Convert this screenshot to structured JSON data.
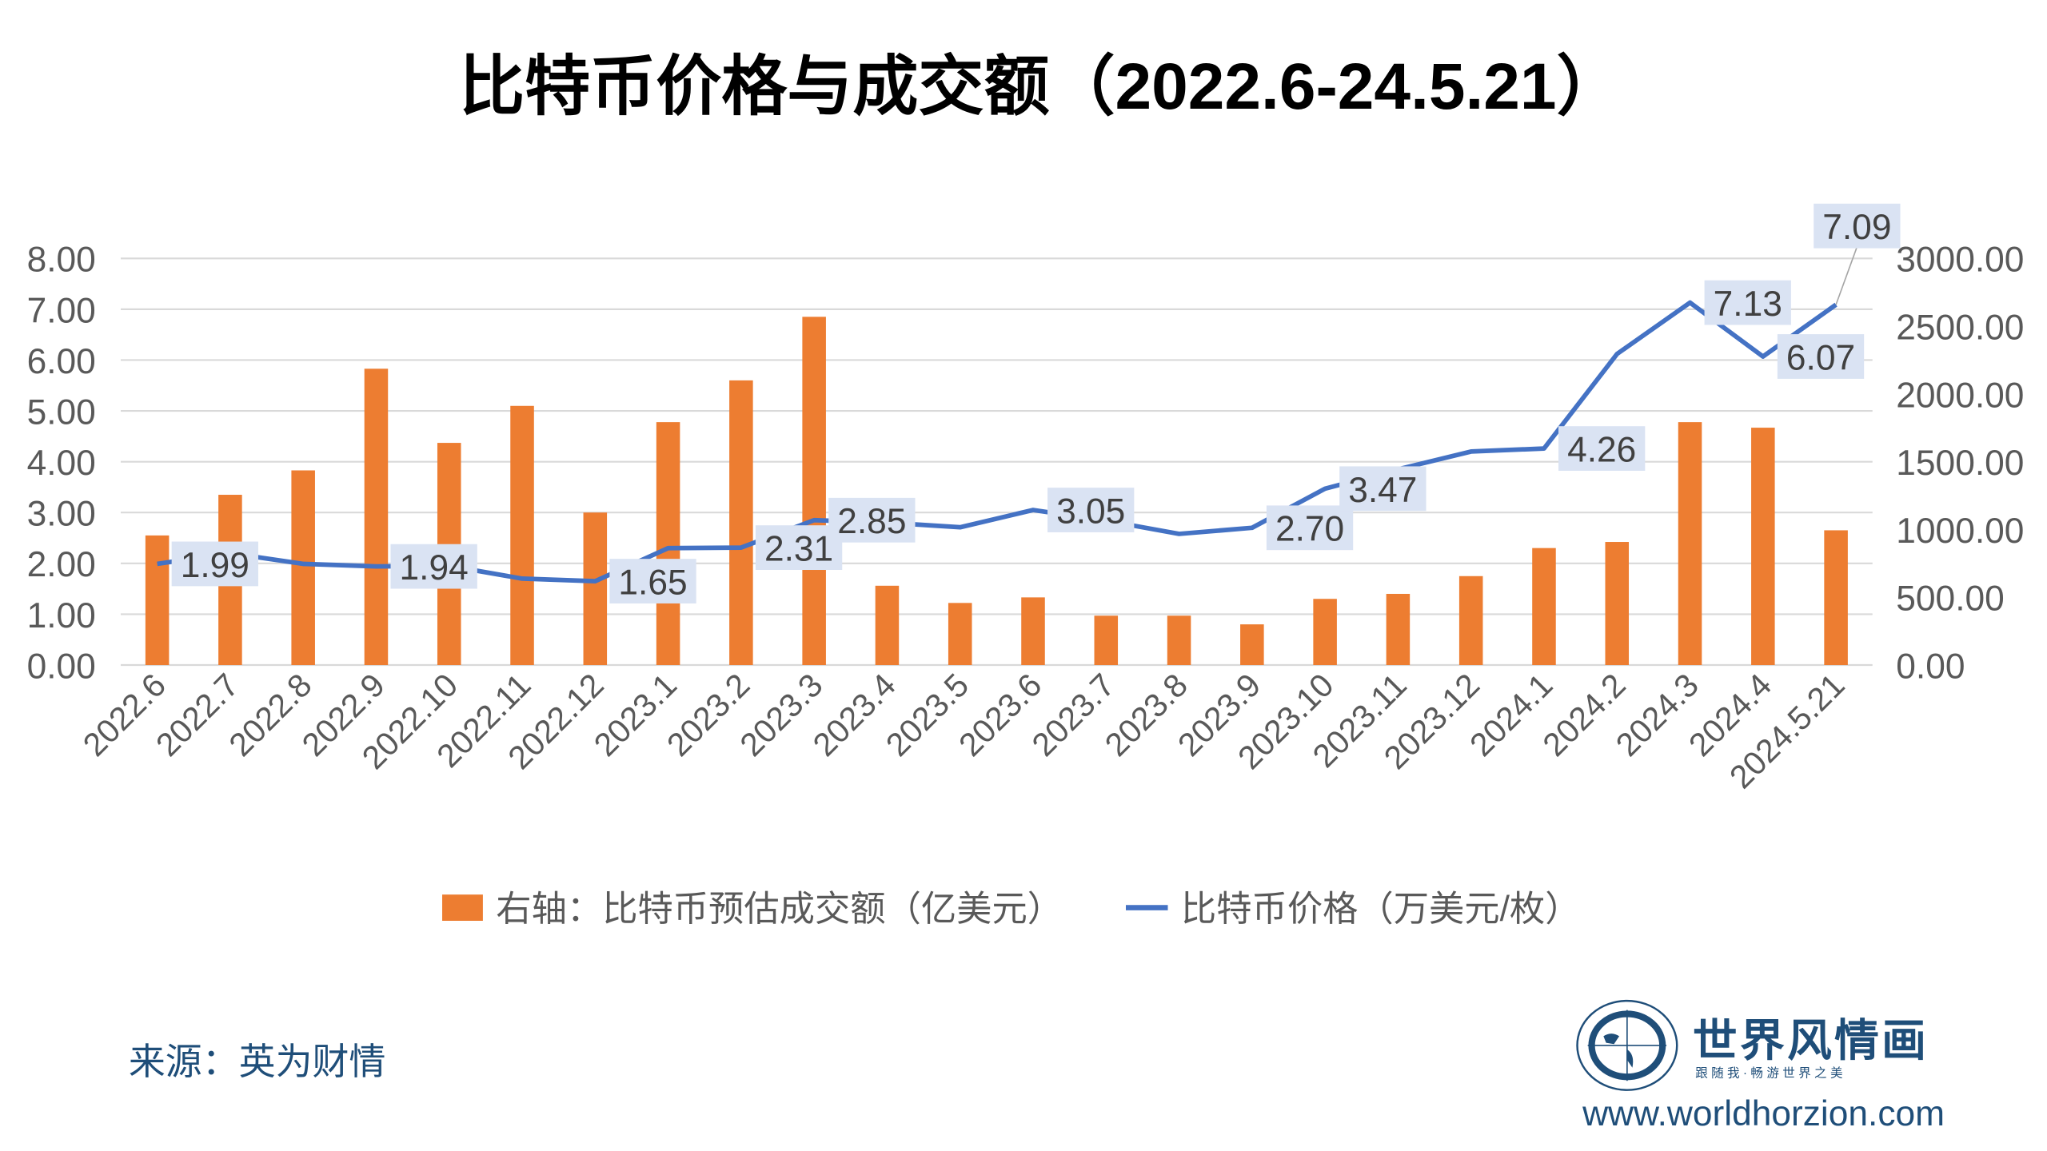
{
  "title": "比特币价格与成交额（2022.6-24.5.21）",
  "source": "来源：英为财情",
  "logo": {
    "name": "世界风情画",
    "slogan": "跟 随 我 · 畅 游 世 界 之 美",
    "url": "www.worldhorzion.com"
  },
  "colors": {
    "bar": "#ed7d31",
    "line": "#4472c4",
    "label_bg": "#dae3f3",
    "axis_text": "#595959",
    "source_text": "#1f4e79",
    "logo": "#1f4e79"
  },
  "chart_data": {
    "type": "bar+line",
    "title": "比特币价格与成交额（2022.6-24.5.21）",
    "categories": [
      "2022.6",
      "2022.7",
      "2022.8",
      "2022.9",
      "2022.10",
      "2022.11",
      "2022.12",
      "2023.1",
      "2023.2",
      "2023.3",
      "2023.4",
      "2023.5",
      "2023.6",
      "2023.7",
      "2023.8",
      "2023.9",
      "2023.10",
      "2023.11",
      "2023.12",
      "2024.1",
      "2024.2",
      "2024.3",
      "2024.4",
      "2024.5.21"
    ],
    "left_axis": {
      "ylim": [
        0,
        8
      ],
      "ticks": [
        "0.00",
        "1.00",
        "2.00",
        "3.00",
        "4.00",
        "5.00",
        "6.00",
        "7.00",
        "8.00"
      ]
    },
    "right_axis": {
      "ylim": [
        0,
        3000
      ],
      "ticks": [
        "0.00",
        "500.00",
        "1000.00",
        "1500.00",
        "2000.00",
        "2500.00",
        "3000.00"
      ]
    },
    "grid": true,
    "legend_position": "bottom",
    "series": [
      {
        "name": "右轴：比特币预估成交额（亿美元）",
        "type": "bar",
        "axis": "right",
        "values": [
          956,
          1256,
          1436,
          2186,
          1639,
          1912,
          1125,
          1792,
          2100,
          2569,
          585,
          458,
          499,
          364,
          364,
          300,
          488,
          525,
          656,
          863,
          908,
          1792,
          1751,
          994
        ]
      },
      {
        "name": "比特币价格（万美元/枚）",
        "type": "line",
        "axis": "left",
        "values": [
          1.99,
          2.2,
          1.99,
          1.94,
          1.95,
          1.7,
          1.65,
          2.3,
          2.31,
          2.85,
          2.8,
          2.71,
          3.05,
          2.84,
          2.58,
          2.7,
          3.47,
          3.85,
          4.2,
          4.26,
          6.12,
          7.13,
          6.07,
          7.09
        ]
      }
    ],
    "data_labels": [
      {
        "category": "2022.6",
        "text": "1.99"
      },
      {
        "category": "2022.9",
        "text": "1.94"
      },
      {
        "category": "2022.12",
        "text": "1.65"
      },
      {
        "category": "2023.2",
        "text": "2.31"
      },
      {
        "category": "2023.3",
        "text": "2.85"
      },
      {
        "category": "2023.6",
        "text": "3.05"
      },
      {
        "category": "2023.9",
        "text": "2.70"
      },
      {
        "category": "2023.10",
        "text": "3.47"
      },
      {
        "category": "2024.1",
        "text": "4.26"
      },
      {
        "category": "2024.3",
        "text": "7.13"
      },
      {
        "category": "2024.4",
        "text": "6.07"
      },
      {
        "category": "2024.5.21",
        "text": "7.09"
      }
    ]
  }
}
